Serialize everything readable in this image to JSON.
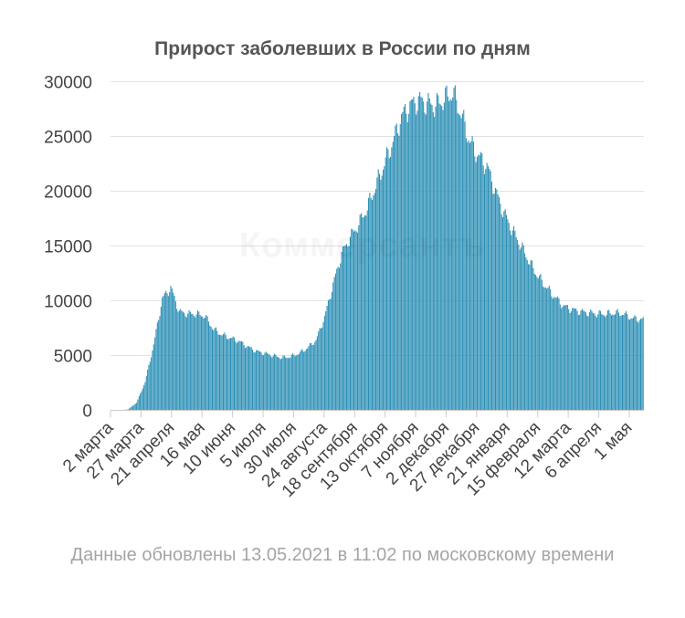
{
  "chart_data": {
    "type": "bar",
    "title": "Прирост заболевших в России по дням",
    "xlabel": "",
    "ylabel": "",
    "ylim": [
      0,
      30000
    ],
    "yticks": [
      0,
      5000,
      10000,
      15000,
      20000,
      25000,
      30000
    ],
    "grid": "horizontal",
    "start_date": "2020-03-02",
    "end_date": "2021-05-12",
    "x_tick_labels": [
      "2 марта",
      "27 марта",
      "21 апреля",
      "16 мая",
      "10 июня",
      "5 июля",
      "30 июля",
      "24 августа",
      "18 сентября",
      "13 октября",
      "7 ноября",
      "2 декабря",
      "27 декабря",
      "21 января",
      "15 февраля",
      "12 марта",
      "6 апреля",
      "1 мая"
    ],
    "bar_color": "#2b8fb5",
    "series": [
      {
        "values_weekly": [
          0,
          10,
          80,
          700,
          2600,
          6000,
          10200,
          11200,
          9000,
          8800,
          8800,
          8600,
          7400,
          6900,
          6600,
          6300,
          5800,
          5400,
          5200,
          5000,
          4800,
          4900,
          5200,
          5700,
          6400,
          8500,
          11500,
          14300,
          15800,
          17000,
          18500,
          20500,
          22500,
          24500,
          26800,
          27800,
          28300,
          28000,
          27800,
          28400,
          29000,
          27000,
          24500,
          23200,
          22300,
          20000,
          18000,
          16400,
          15000,
          13500,
          12200,
          11200,
          10300,
          9500,
          9200,
          9000,
          8900,
          8800,
          8800,
          8900,
          8800,
          8400,
          8300
        ]
      }
    ],
    "footnote": "Данные обновлены 13.05.2021 в 11:02 по московскому времени"
  },
  "watermark": "Коммерсантъ"
}
